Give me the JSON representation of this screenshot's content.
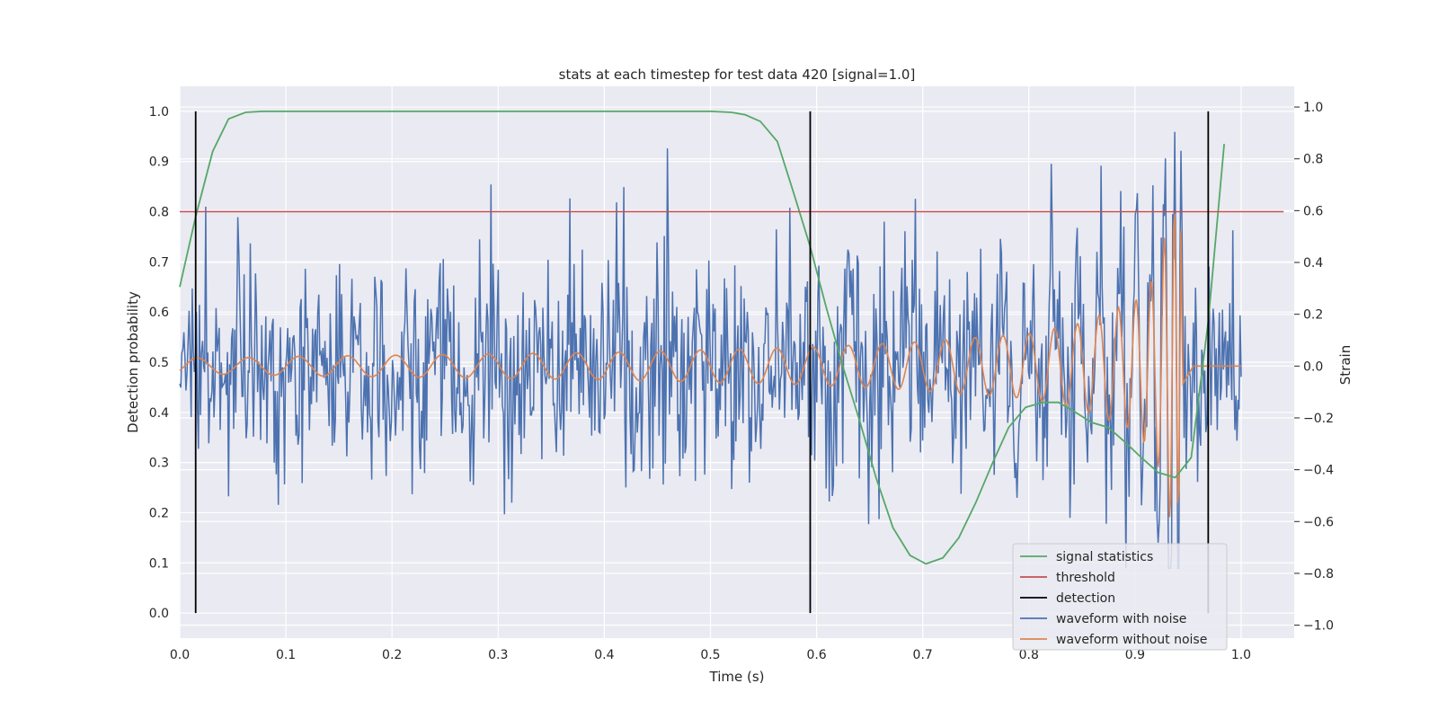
{
  "chart_data": {
    "type": "line",
    "title": "stats at each timestep for test data 420 [signal=1.0]",
    "xlabel": "Time (s)",
    "ylabel_left": "Detection probability",
    "ylabel_right": "Strain",
    "xlim": [
      0.0,
      1.05
    ],
    "ylim_left": [
      -0.05,
      1.05
    ],
    "ylim_right": [
      -1.05,
      1.08
    ],
    "x_ticks": [
      "0.0",
      "0.1",
      "0.2",
      "0.3",
      "0.4",
      "0.5",
      "0.6",
      "0.7",
      "0.8",
      "0.9",
      "1.0"
    ],
    "y_ticks_left": [
      "0.0",
      "0.1",
      "0.2",
      "0.3",
      "0.4",
      "0.5",
      "0.6",
      "0.7",
      "0.8",
      "0.9",
      "1.0"
    ],
    "y_ticks_right": [
      "−1.0",
      "−0.8",
      "−0.6",
      "−0.4",
      "−0.2",
      "0.0",
      "0.2",
      "0.4",
      "0.6",
      "0.8",
      "1.0"
    ],
    "grid": true,
    "legend_position": "lower-right",
    "legend": [
      "signal statistics",
      "threshold",
      "detection",
      "waveform with noise",
      "waveform without noise"
    ],
    "colors": {
      "signal_statistics": "#55a868",
      "threshold": "#c44e52",
      "detection": "#000000",
      "waveform_with_noise": "#4c72b0",
      "waveform_without_noise": "#dd8452",
      "axes_background": "#eaeaf2",
      "grid": "#ffffff"
    },
    "signal_statistics": {
      "x": [
        0.0,
        0.015,
        0.031,
        0.046,
        0.062,
        0.078,
        0.1,
        0.2,
        0.3,
        0.4,
        0.5,
        0.52,
        0.533,
        0.547,
        0.563,
        0.578,
        0.594,
        0.609,
        0.625,
        0.641,
        0.656,
        0.672,
        0.688,
        0.703,
        0.719,
        0.734,
        0.75,
        0.766,
        0.781,
        0.797,
        0.813,
        0.828,
        0.844,
        0.859,
        0.875,
        0.891,
        0.906,
        0.922,
        0.938,
        0.953,
        0.969,
        0.984
      ],
      "y": [
        0.65,
        0.79,
        0.92,
        0.985,
        0.998,
        1.0,
        1.0,
        1.0,
        1.0,
        1.0,
        1.0,
        0.998,
        0.993,
        0.98,
        0.94,
        0.84,
        0.73,
        0.61,
        0.49,
        0.38,
        0.27,
        0.17,
        0.115,
        0.098,
        0.11,
        0.15,
        0.22,
        0.3,
        0.37,
        0.41,
        0.42,
        0.42,
        0.4,
        0.38,
        0.37,
        0.34,
        0.31,
        0.28,
        0.27,
        0.31,
        0.58,
        0.935
      ]
    },
    "threshold": {
      "y": 0.8,
      "x_range": [
        0.0,
        1.04
      ]
    },
    "detections": {
      "x": [
        0.015,
        0.594,
        0.969
      ],
      "y_range": [
        0.0,
        1.0
      ]
    },
    "waveform_with_noise": {
      "x_range": [
        0.0,
        1.0
      ],
      "n_samples": 1024,
      "noise_std": 0.21,
      "y_range_observed": [
        -0.78,
        1.0
      ],
      "axis": "right"
    },
    "waveform_without_noise": {
      "x_range": [
        0.0,
        1.0
      ],
      "description_points": {
        "x": [
          0.0,
          0.05,
          0.1,
          0.2,
          0.3,
          0.4,
          0.5,
          0.6,
          0.7,
          0.8,
          0.85,
          0.9,
          0.92,
          0.935,
          0.945,
          0.955,
          1.0
        ],
        "amplitude": [
          0.03,
          0.03,
          0.035,
          0.04,
          0.045,
          0.05,
          0.06,
          0.07,
          0.09,
          0.12,
          0.16,
          0.24,
          0.34,
          0.6,
          0.5,
          0.0,
          0.0
        ]
      },
      "axis": "right"
    }
  }
}
